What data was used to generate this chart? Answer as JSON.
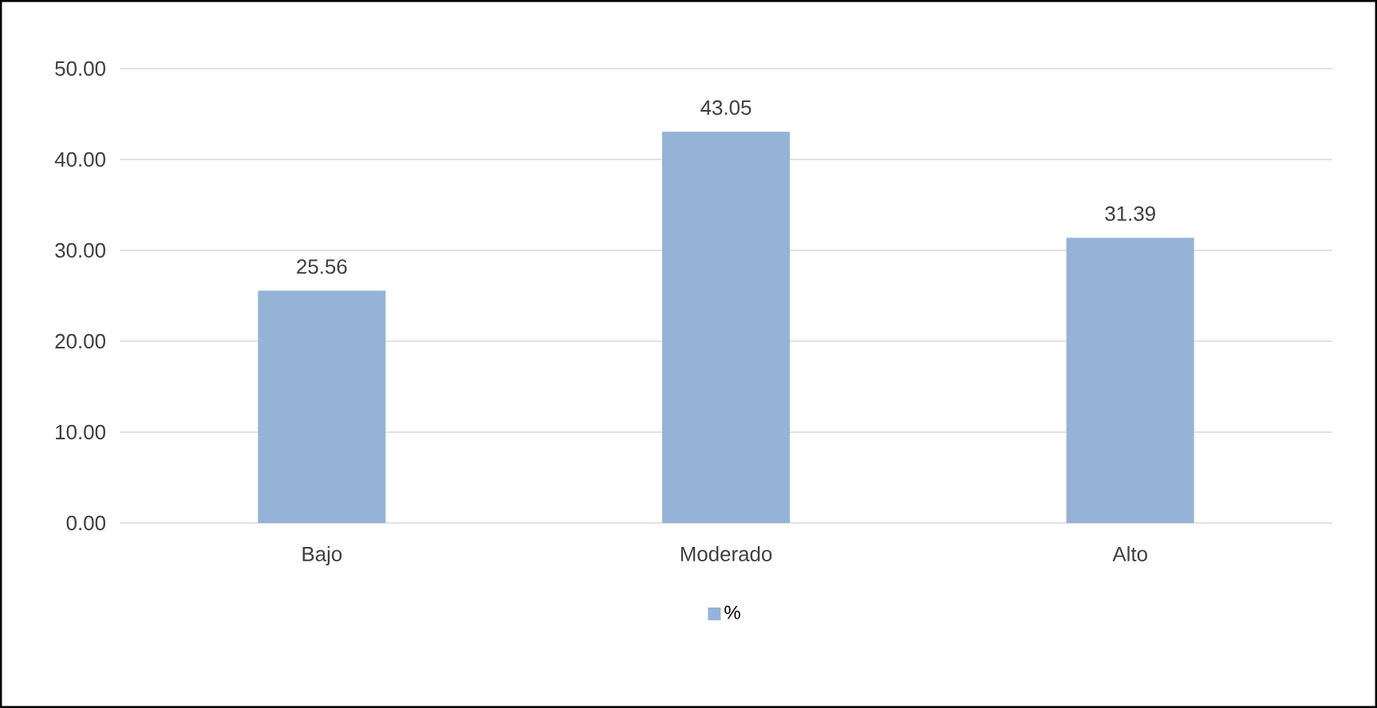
{
  "chart_data": {
    "type": "bar",
    "categories": [
      "Bajo",
      "Moderado",
      "Alto"
    ],
    "series": [
      {
        "name": "%",
        "color": "#95b3d7",
        "values": [
          25.56,
          43.05,
          31.39
        ]
      }
    ],
    "ylim": [
      0,
      50
    ],
    "yticks": [
      {
        "value": 0,
        "label": "0.00"
      },
      {
        "value": 10,
        "label": "10.00"
      },
      {
        "value": 20,
        "label": "20.00"
      },
      {
        "value": 30,
        "label": "30.00"
      },
      {
        "value": 40,
        "label": "40.00"
      },
      {
        "value": 50,
        "label": "50.00"
      }
    ],
    "grid": "y",
    "legend": "bottom",
    "data_labels": true
  }
}
